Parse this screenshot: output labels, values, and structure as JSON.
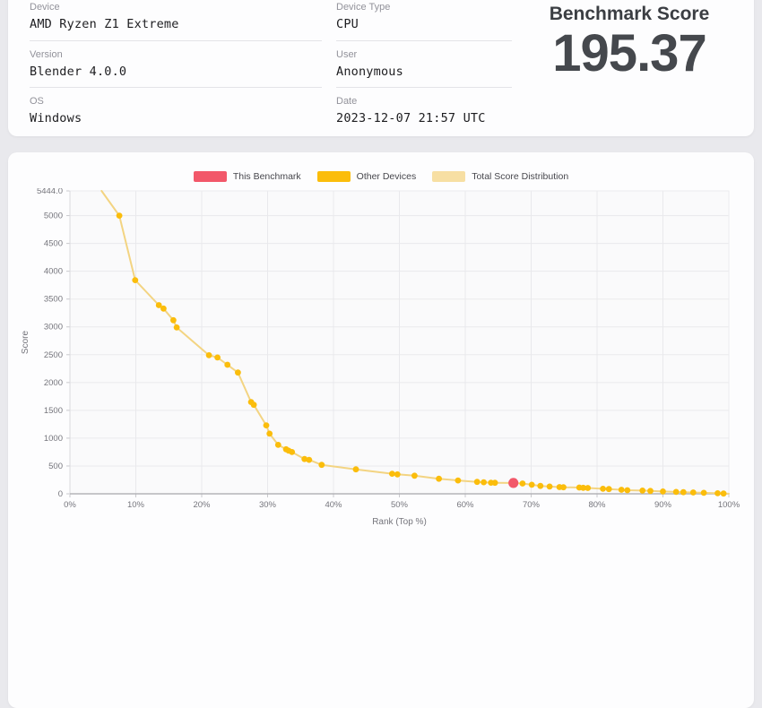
{
  "info_card": {
    "fields": [
      {
        "label": "Device",
        "value": "AMD Ryzen Z1 Extreme"
      },
      {
        "label": "Version",
        "value": "Blender 4.0.0"
      },
      {
        "label": "OS",
        "value": "Windows"
      },
      {
        "label": "Device Type",
        "value": "CPU"
      },
      {
        "label": "User",
        "value": "Anonymous"
      },
      {
        "label": "Date",
        "value": "2023-12-07 21:57 UTC"
      }
    ],
    "score_title": "Benchmark Score",
    "score_value": "195.37"
  },
  "legend": [
    {
      "label": "This Benchmark",
      "color": "#f2586a"
    },
    {
      "label": "Other Devices",
      "color": "#fbbd0b"
    },
    {
      "label": "Total Score Distribution",
      "color": "#f7dfa3"
    }
  ],
  "chart_data": {
    "type": "scatter",
    "title": "",
    "xlabel": "Rank (Top %)",
    "ylabel": "Score",
    "xlim": [
      0,
      100
    ],
    "ylim": [
      0,
      5444
    ],
    "grid": true,
    "legend_position": "top",
    "x_ticks": [
      {
        "v": 0,
        "label": "0%"
      },
      {
        "v": 10,
        "label": "10%"
      },
      {
        "v": 20,
        "label": "20%"
      },
      {
        "v": 30,
        "label": "30%"
      },
      {
        "v": 40,
        "label": "40%"
      },
      {
        "v": 50,
        "label": "50%"
      },
      {
        "v": 60,
        "label": "60%"
      },
      {
        "v": 70,
        "label": "70%"
      },
      {
        "v": 80,
        "label": "80%"
      },
      {
        "v": 90,
        "label": "90%"
      },
      {
        "v": 100,
        "label": "100%"
      }
    ],
    "y_ticks": [
      {
        "v": 5444,
        "label": "5444.0"
      },
      {
        "v": 5000,
        "label": "5000"
      },
      {
        "v": 4500,
        "label": "4500"
      },
      {
        "v": 4000,
        "label": "4000"
      },
      {
        "v": 3500,
        "label": "3500"
      },
      {
        "v": 3000,
        "label": "3000"
      },
      {
        "v": 2500,
        "label": "2500"
      },
      {
        "v": 2000,
        "label": "2000"
      },
      {
        "v": 1500,
        "label": "1500"
      },
      {
        "v": 1000,
        "label": "1000"
      },
      {
        "v": 500,
        "label": "500"
      },
      {
        "v": 0,
        "label": "0"
      }
    ],
    "series": [
      {
        "name": "Total Score Distribution",
        "type": "line",
        "color": "#f3d482",
        "endpoints": [
          [
            4.8,
            5444
          ],
          [
            100,
            2
          ]
        ]
      },
      {
        "name": "Other Devices",
        "type": "points",
        "color": "#fbbd0b",
        "values": [
          [
            7.5,
            5000
          ],
          [
            9.9,
            3840
          ],
          [
            13.5,
            3390
          ],
          [
            14.2,
            3330
          ],
          [
            15.7,
            3120
          ],
          [
            16.2,
            2990
          ],
          [
            21.1,
            2490
          ],
          [
            22.4,
            2450
          ],
          [
            23.9,
            2320
          ],
          [
            25.5,
            2180
          ],
          [
            27.5,
            1650
          ],
          [
            27.9,
            1600
          ],
          [
            29.8,
            1230
          ],
          [
            30.3,
            1080
          ],
          [
            31.6,
            880
          ],
          [
            32.8,
            800
          ],
          [
            33.2,
            775
          ],
          [
            33.7,
            750
          ],
          [
            35.6,
            625
          ],
          [
            36.3,
            610
          ],
          [
            38.2,
            520
          ],
          [
            43.4,
            440
          ],
          [
            48.9,
            360
          ],
          [
            49.7,
            350
          ],
          [
            52.3,
            325
          ],
          [
            56.0,
            270
          ],
          [
            58.9,
            240
          ],
          [
            61.8,
            215
          ],
          [
            62.8,
            208
          ],
          [
            63.9,
            200
          ],
          [
            64.5,
            198
          ],
          [
            68.7,
            185
          ],
          [
            70.1,
            162
          ],
          [
            71.4,
            142
          ],
          [
            72.8,
            130
          ],
          [
            74.3,
            120
          ],
          [
            74.9,
            117
          ],
          [
            77.3,
            112
          ],
          [
            77.9,
            108
          ],
          [
            78.6,
            104
          ],
          [
            80.9,
            90
          ],
          [
            81.8,
            85
          ],
          [
            83.7,
            72
          ],
          [
            84.6,
            65
          ],
          [
            86.9,
            58
          ],
          [
            88.1,
            52
          ],
          [
            90.0,
            42
          ],
          [
            92.0,
            34
          ],
          [
            93.1,
            29
          ],
          [
            94.6,
            24
          ],
          [
            96.2,
            17
          ],
          [
            98.3,
            9
          ],
          [
            99.2,
            5
          ]
        ]
      },
      {
        "name": "This Benchmark",
        "type": "point",
        "color": "#f2586a",
        "x": 67.3,
        "y": 195.37
      }
    ]
  }
}
